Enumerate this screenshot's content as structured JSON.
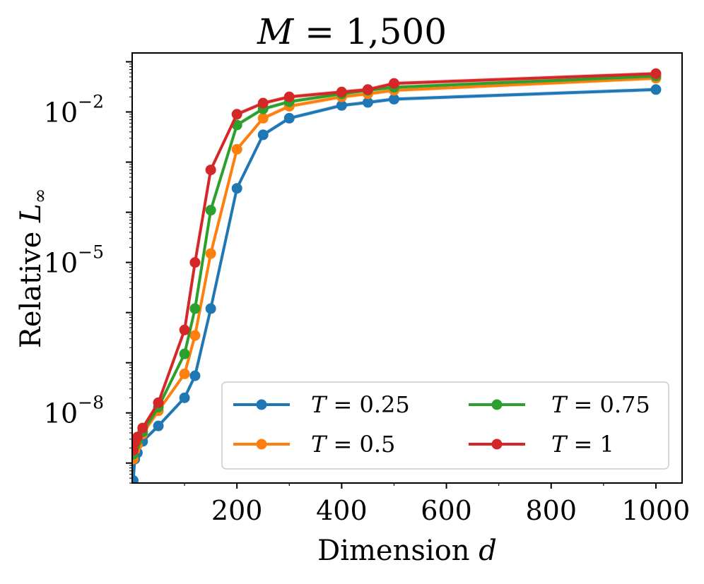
{
  "chart_data": {
    "type": "line",
    "title": {
      "var": "M",
      "rest": " = 1,500"
    },
    "xlabel": {
      "text": "Dimension ",
      "var": "d"
    },
    "ylabel": {
      "text": "Relative ",
      "var": "L",
      "sub": "∞"
    },
    "xscale": "linear",
    "yscale": "log",
    "xlim": [
      0,
      1050
    ],
    "ylim": [
      4e-10,
      0.15
    ],
    "xticks": [
      200,
      400,
      600,
      800,
      1000
    ],
    "xtick_labels": [
      "200",
      "400",
      "600",
      "800",
      "1000"
    ],
    "yticks": [
      {
        "value": 0.01,
        "base": "10",
        "exp": "−2"
      },
      {
        "value": 1e-05,
        "base": "10",
        "exp": "−5"
      },
      {
        "value": 1e-08,
        "base": "10",
        "exp": "−8"
      }
    ],
    "grid": false,
    "legend_position": "lower-right",
    "legend_columns": 2,
    "x": [
      2,
      5,
      10,
      20,
      50,
      100,
      120,
      150,
      200,
      250,
      300,
      400,
      450,
      500,
      1000
    ],
    "series": [
      {
        "name": "T = 0.25",
        "name_var": "T",
        "name_rest": " = 0.25",
        "color": "#1f77b4",
        "values": [
          4.5e-10,
          1.2e-09,
          1.6e-09,
          2.7e-09,
          5.5e-09,
          2e-08,
          5.5e-08,
          1.2e-06,
          0.0003,
          0.0035,
          0.0075,
          0.0135,
          0.0155,
          0.018,
          0.028
        ]
      },
      {
        "name": "T = 0.5",
        "name_var": "T",
        "name_rest": " = 0.5",
        "color": "#ff7f0e",
        "values": [
          1.2e-09,
          1.8e-09,
          2.3e-09,
          3.8e-09,
          1.1e-08,
          6e-08,
          3.5e-07,
          1.5e-05,
          0.0018,
          0.0075,
          0.013,
          0.02,
          0.023,
          0.027,
          0.047
        ]
      },
      {
        "name": "T = 0.75",
        "name_var": "T",
        "name_rest": " = 0.75",
        "color": "#2ca02c",
        "values": [
          1.5e-09,
          2.2e-09,
          2.8e-09,
          4.2e-09,
          1.3e-08,
          1.5e-07,
          1.2e-06,
          0.00011,
          0.0055,
          0.0115,
          0.016,
          0.023,
          0.027,
          0.031,
          0.052
        ]
      },
      {
        "name": "T = 1",
        "name_var": "T",
        "name_rest": " = 1",
        "color": "#d62728",
        "values": [
          1.8e-09,
          2.6e-09,
          3.3e-09,
          5e-09,
          1.6e-08,
          4.5e-07,
          1e-05,
          0.0007,
          0.009,
          0.015,
          0.02,
          0.025,
          0.028,
          0.037,
          0.058
        ]
      }
    ]
  }
}
